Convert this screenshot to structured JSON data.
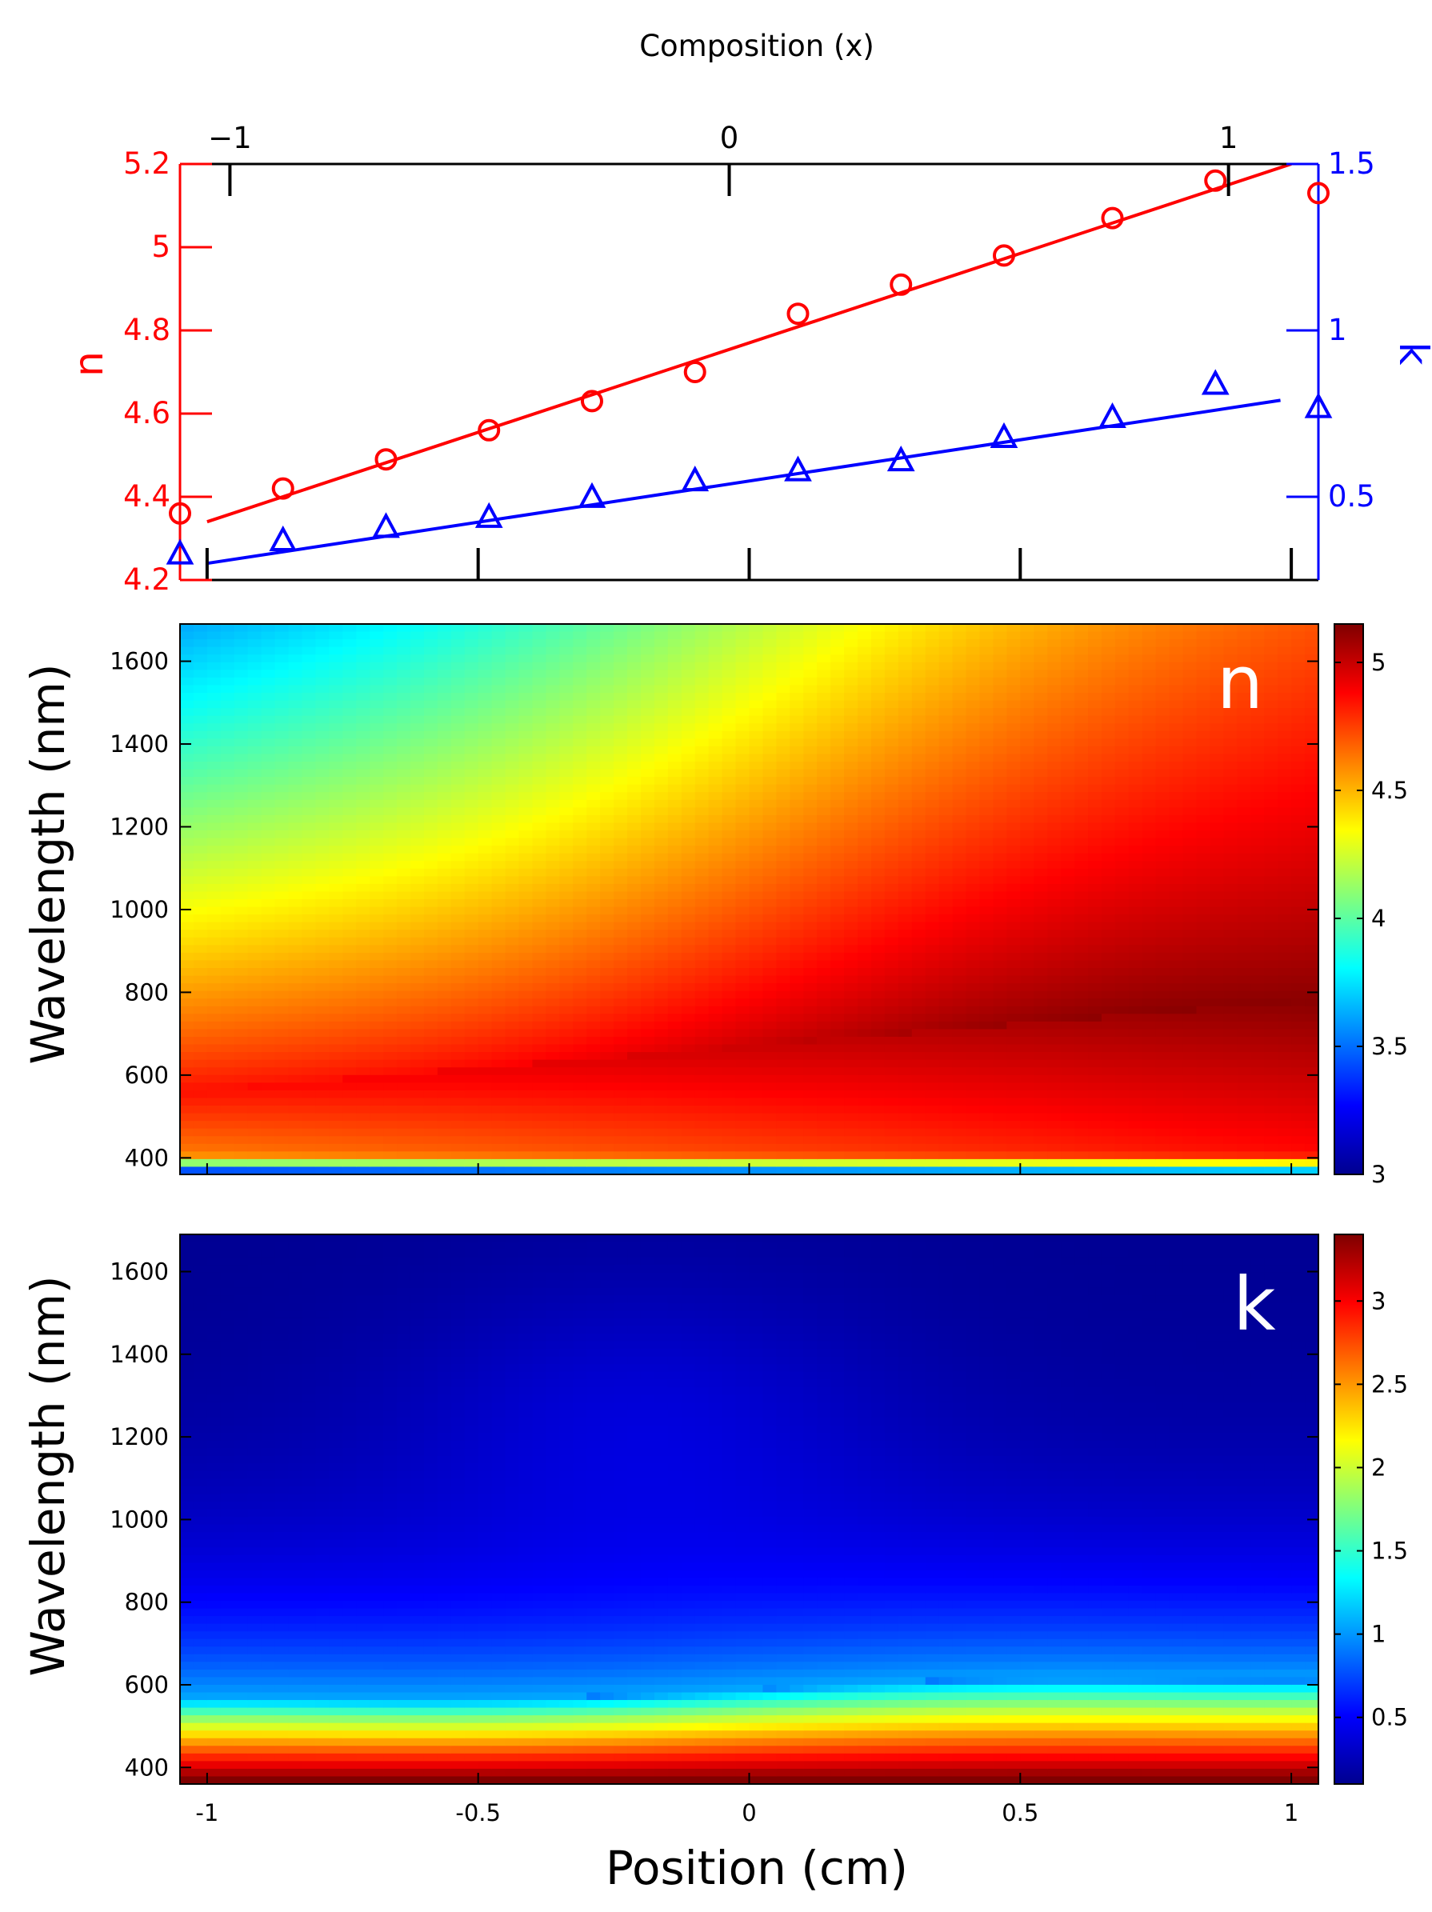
{
  "chart_data": [
    {
      "type": "scatter",
      "top_axis_label": "Composition (x)",
      "top_ticks": [
        -1,
        0,
        1
      ],
      "top_tick_labels": [
        "−1",
        "0",
        "1"
      ],
      "x_domain": [
        -1.05,
        1.05
      ],
      "x_ticks": [
        -1,
        -0.5,
        0,
        0.5,
        1
      ],
      "y_left_label": "n",
      "y_left_lim": [
        4.2,
        5.2
      ],
      "y_left_ticks": [
        4.2,
        4.4,
        4.6,
        4.8,
        5.0,
        5.2
      ],
      "y_left_tick_labels": [
        "4.2",
        "4.4",
        "4.6",
        "4.8",
        "5",
        "5.2"
      ],
      "y_right_label": "k",
      "y_right_lim": [
        0.25,
        1.5
      ],
      "y_right_ticks": [
        0.5,
        1,
        1.5
      ],
      "y_right_tick_labels": [
        "0.5",
        "1",
        "1.5"
      ],
      "colors": {
        "n": "#ff0000",
        "k": "#0000ff"
      },
      "series": [
        {
          "axis": "left",
          "marker": "circle",
          "x": [
            -1.05,
            -0.86,
            -0.67,
            -0.48,
            -0.29,
            -0.1,
            0.09,
            0.28,
            0.47,
            0.67,
            0.86,
            1.05
          ],
          "values": [
            4.36,
            4.42,
            4.49,
            4.56,
            4.63,
            4.7,
            4.84,
            4.91,
            4.98,
            5.07,
            5.16,
            5.13
          ]
        },
        {
          "axis": "right",
          "marker": "triangle",
          "x": [
            -1.05,
            -0.86,
            -0.67,
            -0.48,
            -0.29,
            -0.1,
            0.09,
            0.28,
            0.47,
            0.67,
            0.86,
            1.05
          ],
          "values": [
            0.33,
            0.37,
            0.41,
            0.44,
            0.5,
            0.55,
            0.58,
            0.61,
            0.68,
            0.74,
            0.84,
            0.77
          ]
        }
      ],
      "fits": [
        {
          "axis": "left",
          "x": [
            -1.0,
            1.0
          ],
          "values": [
            4.34,
            5.2
          ]
        },
        {
          "axis": "right",
          "x": [
            -1.0,
            0.98
          ],
          "values": [
            0.3,
            0.79
          ]
        }
      ]
    },
    {
      "type": "heatmap",
      "inner_label": "n",
      "ylabel": "Wavelength (nm)",
      "x_domain": [
        -1.05,
        1.05
      ],
      "x_ticks": [
        -1,
        -0.5,
        0,
        0.5,
        1
      ],
      "ylim": [
        360,
        1690
      ],
      "y_ticks": [
        400,
        600,
        800,
        1000,
        1200,
        1400,
        1600
      ],
      "colorbar_lim": [
        3,
        5.15
      ],
      "colorbar_ticks": [
        3,
        3.5,
        4,
        4.5,
        5
      ],
      "colorbar_tick_labels": [
        "3",
        "3.5",
        "4",
        "4.5",
        "5"
      ]
    },
    {
      "type": "heatmap",
      "inner_label": "k",
      "ylabel": "Wavelength (nm)",
      "xlabel": "Position (cm)",
      "x_domain": [
        -1.05,
        1.05
      ],
      "x_ticks": [
        -1,
        -0.5,
        0,
        0.5,
        1
      ],
      "x_tick_labels": [
        "-1",
        "-0.5",
        "0",
        "0.5",
        "1"
      ],
      "ylim": [
        360,
        1690
      ],
      "y_ticks": [
        400,
        600,
        800,
        1000,
        1200,
        1400,
        1600
      ],
      "colorbar_lim": [
        0.1,
        3.4
      ],
      "colorbar_ticks": [
        0.5,
        1,
        1.5,
        2,
        2.5,
        3
      ],
      "colorbar_tick_labels": [
        "0.5",
        "1",
        "1.5",
        "2",
        "2.5",
        "3"
      ]
    }
  ]
}
